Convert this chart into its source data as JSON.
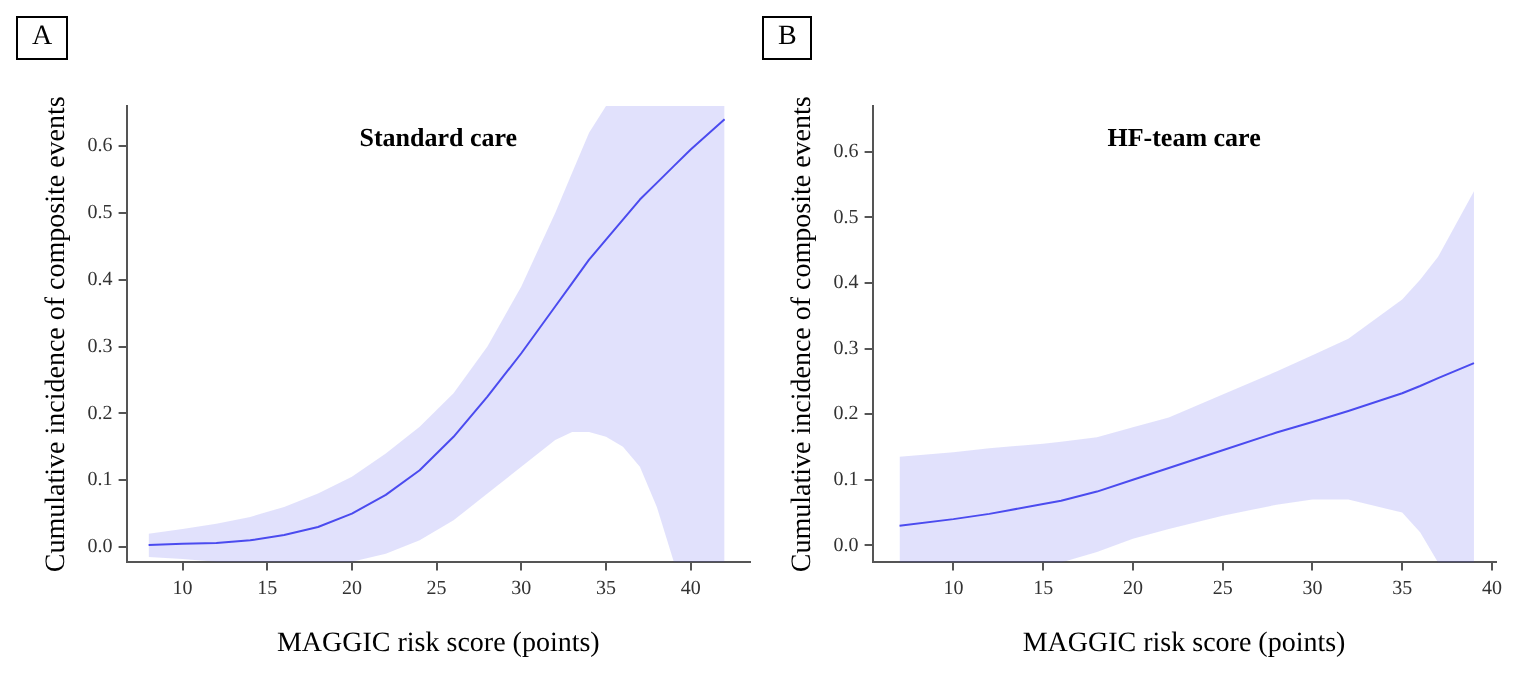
{
  "chart_data": [
    {
      "type": "line",
      "title": "Standard care",
      "xlabel": "MAGGIC risk score (points)",
      "ylabel": "Cumulative incidence of composite events",
      "annotations": [
        "A"
      ],
      "x": [
        8,
        10,
        12,
        14,
        16,
        18,
        20,
        22,
        24,
        26,
        28,
        30,
        32,
        33,
        34,
        35,
        36,
        37,
        38,
        39,
        40,
        42
      ],
      "series": [
        {
          "color": "#4b4bf0",
          "values": [
            0.003,
            0.005,
            0.006,
            0.01,
            0.018,
            0.03,
            0.05,
            0.078,
            0.115,
            0.165,
            0.225,
            0.29,
            0.36,
            0.395,
            0.43,
            0.46,
            0.49,
            0.52,
            0.545,
            0.57,
            0.595,
            0.64
          ],
          "lower": [
            -0.015,
            -0.018,
            -0.022,
            -0.022,
            -0.022,
            -0.022,
            -0.022,
            -0.01,
            0.01,
            0.04,
            0.08,
            0.12,
            0.16,
            0.172,
            0.172,
            0.165,
            0.15,
            0.12,
            0.06,
            -0.022,
            -0.022,
            -0.022
          ],
          "upper": [
            0.02,
            0.027,
            0.035,
            0.045,
            0.06,
            0.08,
            0.105,
            0.14,
            0.18,
            0.23,
            0.3,
            0.39,
            0.5,
            0.56,
            0.62,
            0.66,
            0.66,
            0.66,
            0.66,
            0.66,
            0.66,
            0.66
          ]
        }
      ],
      "xlim": [
        6.7,
        43.5
      ],
      "xticks": [
        10,
        15,
        20,
        25,
        30,
        35,
        40
      ],
      "ylim": [
        -0.023,
        0.66
      ],
      "yticks": [
        {
          "value": 0,
          "label": "0.0"
        },
        0.1,
        0.2,
        0.3,
        0.4,
        0.5,
        0.6
      ]
    },
    {
      "type": "line",
      "title": "HF-team care",
      "xlabel": "MAGGIC risk score (points)",
      "ylabel": "Cumulative incidence of composite events",
      "annotations": [
        "B"
      ],
      "x": [
        7,
        10,
        12,
        15,
        16,
        18,
        20,
        22,
        25,
        28,
        30,
        32,
        35,
        36,
        37,
        39
      ],
      "series": [
        {
          "color": "#4b4bf0",
          "values": [
            0.03,
            0.04,
            0.048,
            0.063,
            0.068,
            0.082,
            0.1,
            0.118,
            0.145,
            0.172,
            0.188,
            0.205,
            0.232,
            0.243,
            0.255,
            0.278
          ],
          "lower": [
            -0.026,
            -0.026,
            -0.026,
            -0.026,
            -0.026,
            -0.01,
            0.01,
            0.025,
            0.045,
            0.062,
            0.07,
            0.07,
            0.05,
            0.02,
            -0.026,
            -0.026
          ],
          "upper": [
            0.135,
            0.142,
            0.148,
            0.155,
            0.158,
            0.165,
            0.18,
            0.195,
            0.23,
            0.265,
            0.29,
            0.315,
            0.375,
            0.405,
            0.44,
            0.54
          ]
        }
      ],
      "xlim": [
        5.5,
        40.2
      ],
      "xticks": [
        10,
        15,
        20,
        25,
        30,
        35,
        40
      ],
      "ylim": [
        -0.026,
        0.67
      ],
      "yticks": [
        {
          "value": 0,
          "label": "0.0"
        },
        0.1,
        0.2,
        0.3,
        0.4,
        0.5,
        0.6
      ]
    }
  ]
}
